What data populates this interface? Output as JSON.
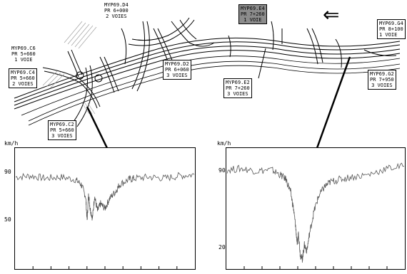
{
  "arrow": "⇐",
  "units": "km/h",
  "stations": {
    "d4": [
      "MYP69.D4",
      "PR  6+000",
      "2  VOIES"
    ],
    "c6": [
      "MYP69.C6",
      "PR  5+660",
      "1  VOIE"
    ],
    "c4": [
      "MYP69.C4",
      "PR  5+660",
      "2  VOIES"
    ],
    "c2": [
      "MYP69.C2",
      "PR  5+660",
      "3  VOIES"
    ],
    "d2": [
      "MYP69.D2",
      "PR  6+060",
      "3  VOIES"
    ],
    "e4": [
      "MYP69.E4",
      "PR  7+260",
      "1  VOIE"
    ],
    "e2": [
      "MYP69.E2",
      "PR  7+260",
      "3  VOIES"
    ],
    "g4": [
      "MYP69.G4",
      "PR  8+100",
      "1  VOIE"
    ],
    "g2": [
      "MYP69.G2",
      "PR  7+950",
      "3  VOIES"
    ]
  },
  "charts": {
    "left": {
      "ticks": [
        "90",
        "50"
      ]
    },
    "right": {
      "ticks": [
        "90",
        "20"
      ]
    }
  },
  "chart_data": [
    {
      "type": "line",
      "station": "MYP69.C2",
      "ylabel": "km/h",
      "yticks": [
        90,
        50
      ],
      "ylim": [
        10,
        110
      ],
      "series": [
        {
          "x": [
            0,
            50,
            100,
            150,
            200,
            220,
            235,
            240,
            245,
            250,
            258,
            265,
            275,
            285,
            300,
            315,
            335,
            350,
            380,
            400,
            450,
            500,
            550,
            600
          ],
          "values": [
            86,
            87,
            85,
            86,
            84,
            80,
            70,
            50,
            72,
            60,
            52,
            70,
            58,
            64,
            60,
            68,
            74,
            80,
            84,
            85,
            86,
            85,
            87,
            88
          ]
        }
      ]
    },
    {
      "type": "line",
      "station": "MYP69.G2",
      "ylabel": "km/h",
      "yticks": [
        90,
        20
      ],
      "ylim": [
        10,
        110
      ],
      "series": [
        {
          "x": [
            0,
            50,
            100,
            150,
            180,
            200,
            215,
            225,
            232,
            238,
            242,
            248,
            255,
            262,
            270,
            280,
            295,
            310,
            330,
            350,
            380,
            420,
            480,
            540,
            600
          ],
          "values": [
            92,
            93,
            91,
            92,
            88,
            84,
            74,
            60,
            46,
            30,
            40,
            22,
            18,
            30,
            25,
            40,
            58,
            70,
            78,
            82,
            84,
            86,
            88,
            93,
            95
          ]
        }
      ]
    }
  ]
}
